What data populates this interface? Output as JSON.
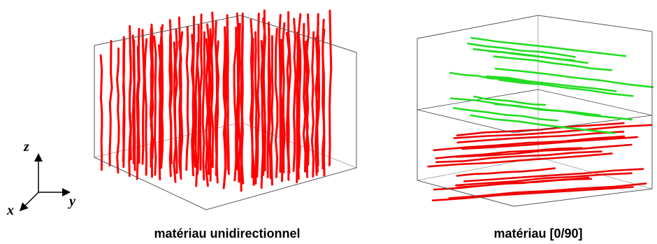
{
  "axes": {
    "z": "z",
    "y": "y",
    "x": "x"
  },
  "panels": [
    {
      "caption": "matériau unidirectionnel"
    },
    {
      "caption": "matériau [0/90]"
    }
  ]
}
